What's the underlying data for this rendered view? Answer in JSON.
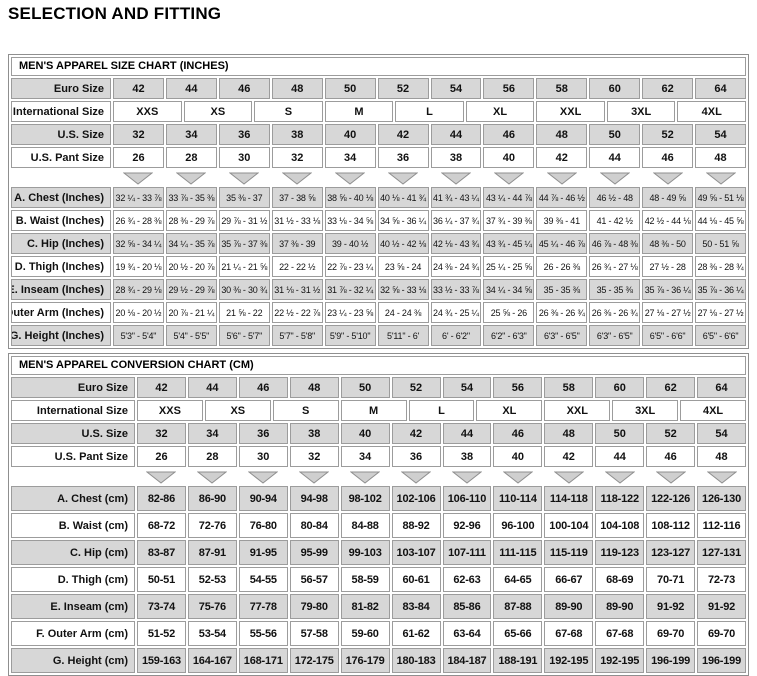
{
  "page_title": "SELECTION AND FITTING",
  "colors": {
    "row_gray": "#d7d7d7",
    "cell_border": "#9c9c9c",
    "triangle_fill": "#cfcfcf",
    "triangle_stroke": "#8f8f8f",
    "text": "#000000"
  },
  "tables": [
    {
      "title": "MEN'S APPAREL SIZE CHART (INCHES)",
      "euro_label": "Euro Size",
      "euro_sizes": [
        "42",
        "44",
        "46",
        "48",
        "50",
        "52",
        "54",
        "56",
        "58",
        "60",
        "62",
        "64"
      ],
      "international_label": "International Size",
      "international_sizes": [
        "XXS",
        "XS",
        "S",
        "M",
        "L",
        "XL",
        "XXL",
        "3XL",
        "4XL"
      ],
      "us_label": "U.S. Size",
      "us_sizes": [
        "32",
        "34",
        "36",
        "38",
        "40",
        "42",
        "44",
        "46",
        "48",
        "50",
        "52",
        "54"
      ],
      "pant_label": "U.S. Pant Size",
      "pant_sizes": [
        "26",
        "28",
        "30",
        "32",
        "34",
        "36",
        "38",
        "40",
        "42",
        "44",
        "46",
        "48"
      ],
      "rows": [
        {
          "label": "A. Chest (Inches)",
          "values": [
            "32 ¼ - 33 ⅞",
            "33 ⅞ - 35 ⅜",
            "35 ⅜ - 37",
            "37 - 38 ⅝",
            "38 ⅝ - 40 ⅛",
            "40 ⅛ - 41 ¾",
            "41 ¾ - 43 ¼",
            "43 ¼ - 44 ⅞",
            "44 ⅞ - 46 ½",
            "46 ½ - 48",
            "48 - 49 ⅝",
            "49 ⅝ - 51 ⅛"
          ]
        },
        {
          "label": "B. Waist (Inches)",
          "values": [
            "26 ¾ - 28 ⅜",
            "28 ⅜ - 29 ⅞",
            "29 ⅞ - 31 ½",
            "31 ½ - 33 ⅛",
            "33 ⅛ - 34 ⅝",
            "34 ⅝ - 36 ¼",
            "36 ¼ - 37 ¾",
            "37 ¾ - 39 ⅜",
            "39 ⅜ - 41",
            "41 - 42 ½",
            "42 ½ - 44 ⅛",
            "44 ⅛ - 45 ⅝"
          ]
        },
        {
          "label": "C. Hip (Inches)",
          "values": [
            "32 ⅝ - 34 ¼",
            "34 ¼ - 35 ⅞",
            "35 ⅞ - 37 ⅜",
            "37 ⅜ - 39",
            "39 - 40 ½",
            "40 ½ - 42 ⅛",
            "42 ⅛ - 43 ¾",
            "43 ¾ - 45 ¼",
            "45 ¼ - 46 ⅞",
            "46 ⅞ - 48 ⅜",
            "48 ⅜ - 50",
            "50 - 51 ⅝"
          ]
        },
        {
          "label": "D. Thigh (Inches)",
          "values": [
            "19 ¾ - 20 ⅛",
            "20 ½ - 20 ⅞",
            "21 ¼ - 21 ⅝",
            "22 - 22 ½",
            "22 ⅞ - 23 ¼",
            "23 ⅝ - 24",
            "24 ⅜ - 24 ¾",
            "25 ¼ - 25 ⅝",
            "26 - 26 ⅜",
            "26 ¾ - 27 ⅛",
            "27 ½ - 28",
            "28 ⅜ - 28 ¾"
          ]
        },
        {
          "label": "E. Inseam (Inches)",
          "values": [
            "28 ¾ - 29 ⅛",
            "29 ½ - 29 ⅞",
            "30 ⅜ - 30 ¾",
            "31 ⅛ - 31 ½",
            "31 ⅞ - 32 ¼",
            "32 ⅝ - 33 ⅛",
            "33 ½ - 33 ⅞",
            "34 ¼ - 34 ⅝",
            "35 - 35 ⅜",
            "35 - 35 ⅜",
            "35 ⅞ - 36 ¼",
            "35 ⅞ - 36 ¼"
          ]
        },
        {
          "label": "F. Outer Arm (Inches)",
          "values": [
            "20 ⅛ - 20 ½",
            "20 ⅞ - 21 ¼",
            "21 ⅝ - 22",
            "22 ½ - 22 ⅞",
            "23 ¼ - 23 ⅝",
            "24 - 24 ⅜",
            "24 ¾ - 25 ¼",
            "25 ⅝ - 26",
            "26 ⅜ - 26 ¾",
            "26 ⅜ - 26 ¾",
            "27 ⅛ - 27 ½",
            "27 ⅛ - 27 ½"
          ]
        },
        {
          "label": "G. Height (Inches)",
          "values": [
            "5'3\" - 5'4\"",
            "5'4\" - 5'5\"",
            "5'6\" - 5'7\"",
            "5'7\" - 5'8\"",
            "5'9\" - 5'10\"",
            "5'11\" - 6'",
            "6' - 6'2\"",
            "6'2\" - 6'3\"",
            "6'3\" - 6'5\"",
            "6'3\" - 6'5\"",
            "6'5\" - 6'6\"",
            "6'5\" - 6'6\""
          ]
        }
      ]
    },
    {
      "title": "MEN'S APPAREL CONVERSION CHART (CM)",
      "euro_label": "Euro Size",
      "euro_sizes": [
        "42",
        "44",
        "46",
        "48",
        "50",
        "52",
        "54",
        "56",
        "58",
        "60",
        "62",
        "64"
      ],
      "international_label": "International Size",
      "international_sizes": [
        "XXS",
        "XS",
        "S",
        "M",
        "L",
        "XL",
        "XXL",
        "3XL",
        "4XL"
      ],
      "us_label": "U.S. Size",
      "us_sizes": [
        "32",
        "34",
        "36",
        "38",
        "40",
        "42",
        "44",
        "46",
        "48",
        "50",
        "52",
        "54"
      ],
      "pant_label": "U.S. Pant Size",
      "pant_sizes": [
        "26",
        "28",
        "30",
        "32",
        "34",
        "36",
        "38",
        "40",
        "42",
        "44",
        "46",
        "48"
      ],
      "rows": [
        {
          "label": "A. Chest (cm)",
          "values": [
            "82-86",
            "86-90",
            "90-94",
            "94-98",
            "98-102",
            "102-106",
            "106-110",
            "110-114",
            "114-118",
            "118-122",
            "122-126",
            "126-130"
          ]
        },
        {
          "label": "B. Waist (cm)",
          "values": [
            "68-72",
            "72-76",
            "76-80",
            "80-84",
            "84-88",
            "88-92",
            "92-96",
            "96-100",
            "100-104",
            "104-108",
            "108-112",
            "112-116"
          ]
        },
        {
          "label": "C. Hip (cm)",
          "values": [
            "83-87",
            "87-91",
            "91-95",
            "95-99",
            "99-103",
            "103-107",
            "107-111",
            "111-115",
            "115-119",
            "119-123",
            "123-127",
            "127-131"
          ]
        },
        {
          "label": "D. Thigh (cm)",
          "values": [
            "50-51",
            "52-53",
            "54-55",
            "56-57",
            "58-59",
            "60-61",
            "62-63",
            "64-65",
            "66-67",
            "68-69",
            "70-71",
            "72-73"
          ]
        },
        {
          "label": "E. Inseam (cm)",
          "values": [
            "73-74",
            "75-76",
            "77-78",
            "79-80",
            "81-82",
            "83-84",
            "85-86",
            "87-88",
            "89-90",
            "89-90",
            "91-92",
            "91-92"
          ]
        },
        {
          "label": "F. Outer Arm (cm)",
          "values": [
            "51-52",
            "53-54",
            "55-56",
            "57-58",
            "59-60",
            "61-62",
            "63-64",
            "65-66",
            "67-68",
            "67-68",
            "69-70",
            "69-70"
          ]
        },
        {
          "label": "G. Height (cm)",
          "values": [
            "159-163",
            "164-167",
            "168-171",
            "172-175",
            "176-179",
            "180-183",
            "184-187",
            "188-191",
            "192-195",
            "192-195",
            "196-199",
            "196-199"
          ]
        }
      ]
    }
  ]
}
